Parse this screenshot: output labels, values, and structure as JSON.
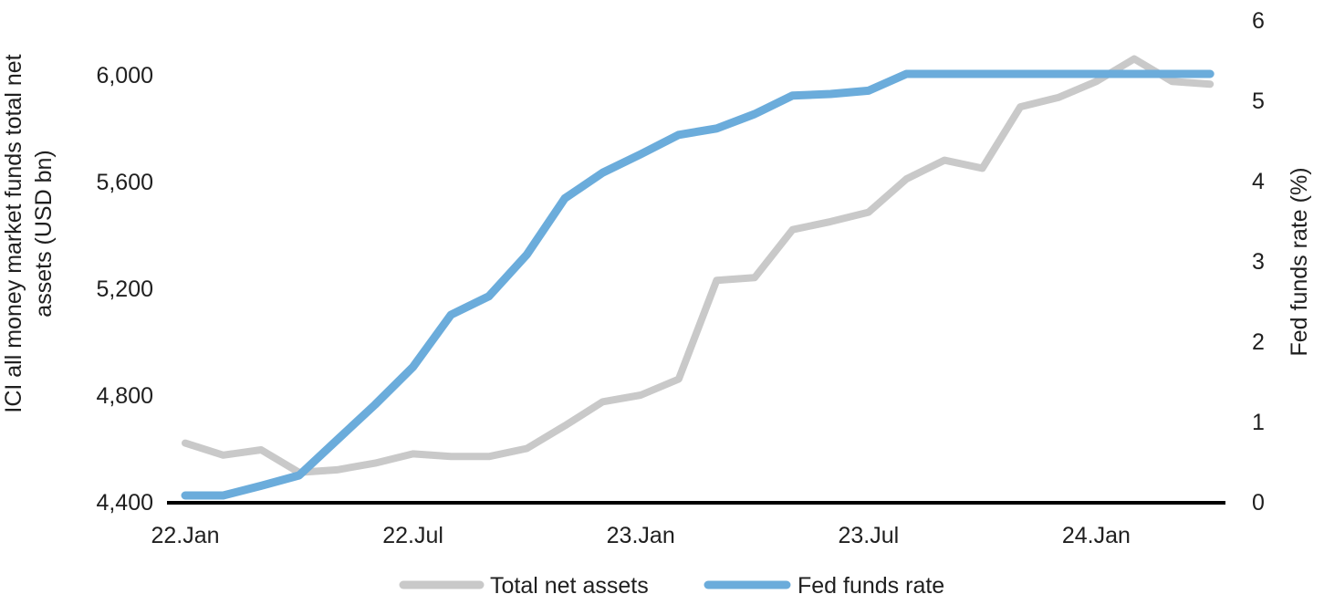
{
  "chart_data": {
    "type": "line",
    "title": "",
    "x": [
      "22.Jan",
      "22.Feb",
      "22.Mar",
      "22.Apr",
      "22.May",
      "22.Jun",
      "22.Jul",
      "22.Aug",
      "22.Sep",
      "22.Oct",
      "22.Nov",
      "22.Dec",
      "23.Jan",
      "23.Feb",
      "23.Mar",
      "23.Apr",
      "23.May",
      "23.Jun",
      "23.Jul",
      "23.Aug",
      "23.Sep",
      "23.Oct",
      "23.Nov",
      "23.Dec",
      "24.Jan",
      "24.Feb",
      "24.Mar",
      "24.Apr"
    ],
    "x_tick_labels": [
      "22.Jan",
      "22.Jul",
      "23.Jan",
      "23.Jul",
      "24.Jan"
    ],
    "x_tick_indices": [
      0,
      6,
      12,
      18,
      24
    ],
    "series": [
      {
        "name": "Total net assets",
        "axis": "left",
        "color": "#C9C9C9",
        "values": [
          4620,
          4575,
          4595,
          4510,
          4520,
          4545,
          4580,
          4570,
          4570,
          4600,
          4685,
          4775,
          4800,
          4860,
          5230,
          5240,
          5420,
          5450,
          5485,
          5610,
          5680,
          5650,
          5880,
          5915,
          5975,
          6060,
          5975,
          5965
        ]
      },
      {
        "name": "Fed funds rate",
        "axis": "right",
        "color": "#6BACDB",
        "values": [
          0.08,
          0.08,
          0.2,
          0.33,
          0.77,
          1.21,
          1.68,
          2.33,
          2.56,
          3.08,
          3.78,
          4.1,
          4.33,
          4.57,
          4.65,
          4.83,
          5.06,
          5.08,
          5.12,
          5.33,
          5.33,
          5.33,
          5.33,
          5.33,
          5.33,
          5.33,
          5.33,
          5.33
        ]
      }
    ],
    "left_axis": {
      "title": "ICI all money market funds total net assets (USD bn)",
      "title_line1": "ICI all money market funds total net",
      "title_line2": "assets (USD bn)",
      "tick_values": [
        4400,
        4800,
        5200,
        5600,
        6000
      ],
      "tick_labels": [
        "4,400",
        "4,800",
        "5,200",
        "5,600",
        "6,000"
      ],
      "range": [
        4400,
        6000
      ]
    },
    "right_axis": {
      "title": "Fed funds rate (%)",
      "tick_values": [
        0,
        1,
        2,
        3,
        4,
        5,
        6
      ],
      "tick_labels": [
        "0",
        "1",
        "2",
        "3",
        "4",
        "5",
        "6"
      ],
      "range": [
        0,
        6
      ]
    },
    "legend": {
      "position": "bottom-center",
      "items": [
        {
          "label": "Total net assets",
          "color": "#C9C9C9"
        },
        {
          "label": "Fed funds rate",
          "color": "#6BACDB"
        }
      ]
    },
    "grid": "off",
    "background_color": "#FFFFFF",
    "axis_line_color": "#000000",
    "text_color": "#1F1F1F"
  }
}
